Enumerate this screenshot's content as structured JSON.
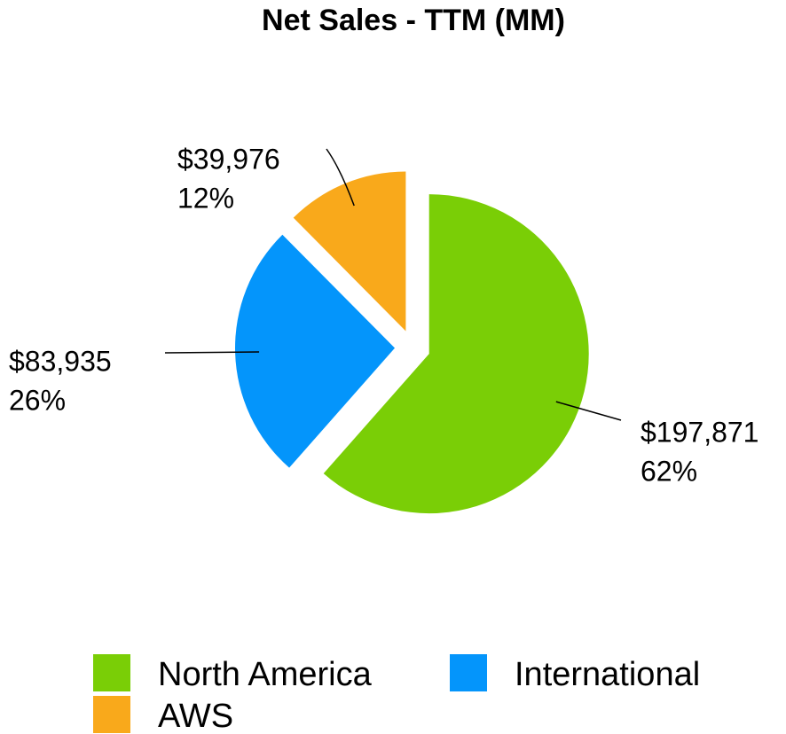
{
  "chart_data": {
    "type": "pie",
    "title": "Net Sales - TTM (MM)",
    "categories": [
      "North America",
      "International",
      "AWS"
    ],
    "values": [
      197871,
      83935,
      39976
    ],
    "value_labels": [
      "$197,871",
      "$83,935",
      "$39,976"
    ],
    "percent_labels": [
      "62%",
      "26%",
      "12%"
    ],
    "colors": [
      "#7ace06",
      "#0495fb",
      "#f9a91b"
    ],
    "legend": "bottom"
  }
}
